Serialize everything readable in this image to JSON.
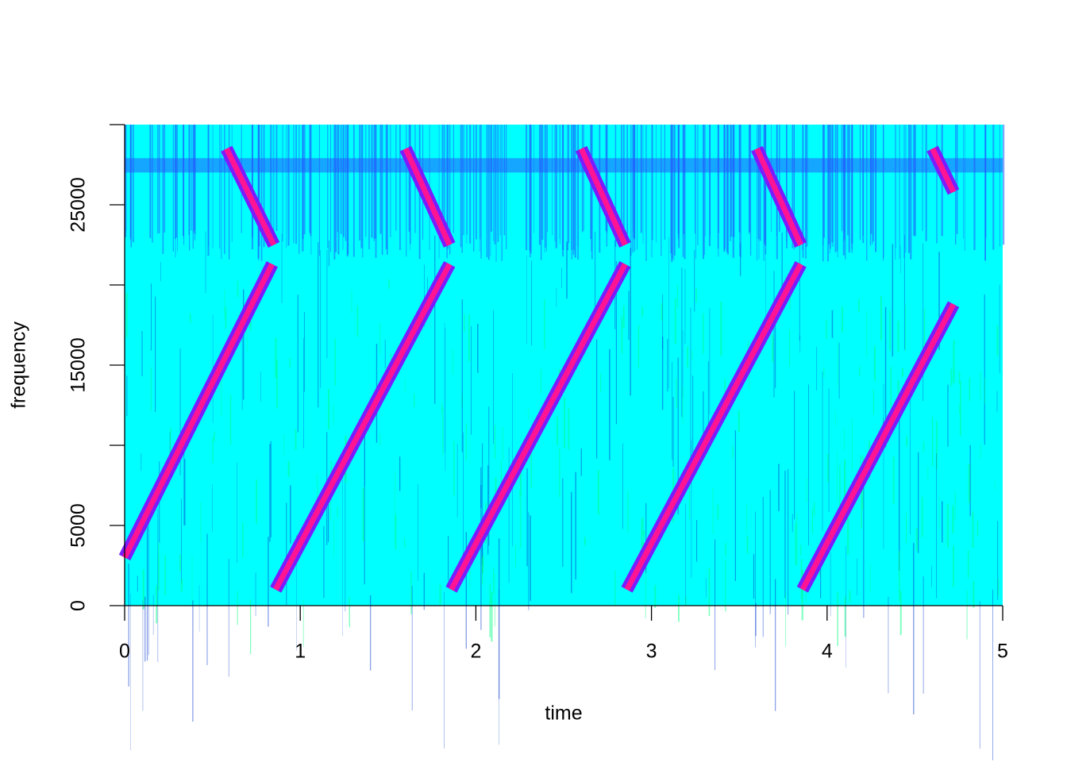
{
  "chart_data": {
    "type": "spectrogram",
    "xlabel": "time",
    "ylabel": "frequency",
    "xlim": [
      0,
      5
    ],
    "xticks": [
      0,
      1,
      2,
      3,
      4,
      5
    ],
    "ylim": [
      0,
      30000
    ],
    "yticks": [
      0,
      5000,
      15000,
      25000
    ],
    "ytick_marks": [
      0,
      5000,
      10000,
      15000,
      20000,
      25000,
      30000
    ],
    "x": [
      0,
      0.84,
      null,
      0.58,
      0.85,
      null,
      0.86,
      1.85,
      null,
      1.6,
      1.85,
      null,
      1.86,
      2.85,
      null,
      2.6,
      2.85,
      null,
      2.86,
      3.85,
      null,
      3.6,
      3.85,
      null,
      3.86,
      4.72,
      null,
      4.6,
      4.72
    ],
    "series": [
      {
        "color": "#ff1493",
        "values": [
          3000,
          21300,
          null,
          28500,
          22500,
          null,
          1000,
          21300,
          null,
          28500,
          22500,
          null,
          1000,
          21300,
          null,
          28500,
          22500,
          null,
          1000,
          21300,
          null,
          28500,
          22500,
          null,
          1000,
          18800,
          null,
          28500,
          25800
        ]
      }
    ]
  }
}
